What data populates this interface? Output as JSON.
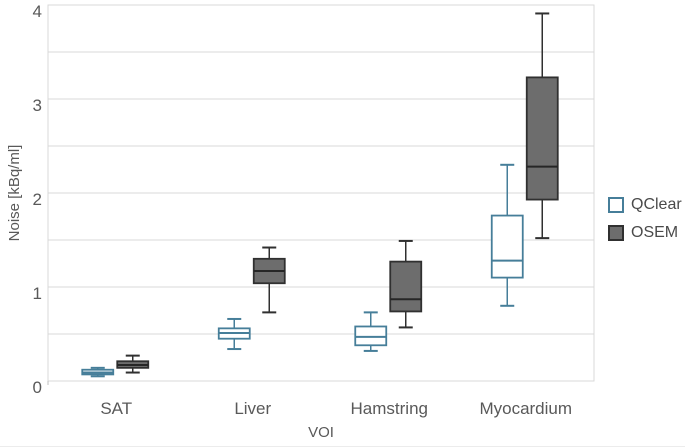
{
  "chart_data": {
    "type": "boxplot",
    "title": "",
    "xlabel": "VOI",
    "ylabel": "Noise [kBq/ml]",
    "ylim": [
      0,
      4
    ],
    "y_major_ticks": [
      0,
      1,
      2,
      3,
      4
    ],
    "y_minor_step": 0.5,
    "grid": "horizontal gridlines every 0.5, light gray, plot area framed",
    "legend_position": "right-center",
    "categories": [
      "SAT",
      "Liver",
      "Hamstring",
      "Myocardium"
    ],
    "series": [
      {
        "name": "QClear",
        "fill": "#ffffff",
        "stroke": "#467e99",
        "median_color": "#467e99",
        "boxes": [
          {
            "category": "SAT",
            "min": 0.05,
            "q1": 0.07,
            "median": 0.09,
            "q3": 0.12,
            "max": 0.14
          },
          {
            "category": "Liver",
            "min": 0.34,
            "q1": 0.45,
            "median": 0.51,
            "q3": 0.56,
            "max": 0.66
          },
          {
            "category": "Hamstring",
            "min": 0.32,
            "q1": 0.38,
            "median": 0.47,
            "q3": 0.58,
            "max": 0.73
          },
          {
            "category": "Myocardium",
            "min": 0.8,
            "q1": 1.1,
            "median": 1.28,
            "q3": 1.76,
            "max": 2.3
          }
        ]
      },
      {
        "name": "OSEM",
        "fill": "#6d6d6d",
        "stroke": "#303030",
        "median_color": "#262626",
        "boxes": [
          {
            "category": "SAT",
            "min": 0.09,
            "q1": 0.14,
            "median": 0.17,
            "q3": 0.21,
            "max": 0.27
          },
          {
            "category": "Liver",
            "min": 0.73,
            "q1": 1.04,
            "median": 1.17,
            "q3": 1.3,
            "max": 1.42
          },
          {
            "category": "Hamstring",
            "min": 0.57,
            "q1": 0.74,
            "median": 0.87,
            "q3": 1.27,
            "max": 1.49
          },
          {
            "category": "Myocardium",
            "min": 1.52,
            "q1": 1.93,
            "median": 2.28,
            "q3": 3.23,
            "max": 3.91
          }
        ]
      }
    ],
    "colors": {
      "grid": "#d9d9d9",
      "axis_text": "#595959",
      "background": "#ffffff"
    }
  }
}
